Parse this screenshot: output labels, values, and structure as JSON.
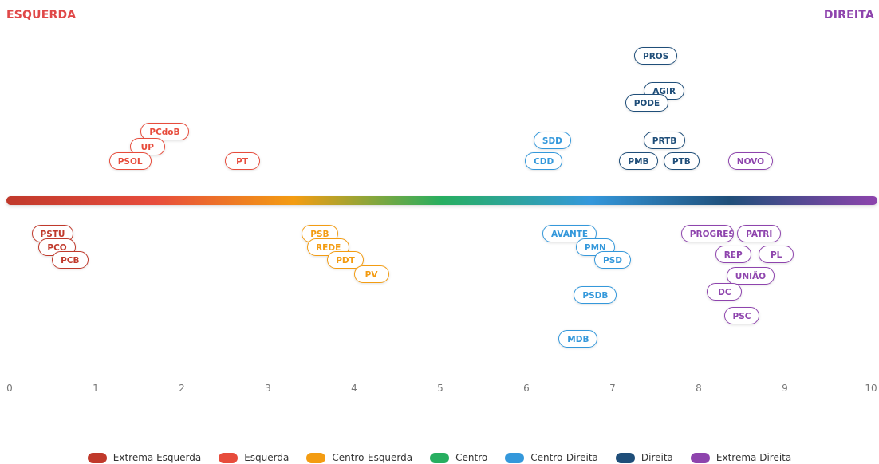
{
  "chart_data": {
    "type": "scatter",
    "left_label": "ESQUERDA",
    "right_label": "DIREITA",
    "xlim": [
      0,
      10
    ],
    "ticks": [
      "0",
      "1",
      "2",
      "3",
      "4",
      "5",
      "6",
      "7",
      "8",
      "9",
      "10"
    ],
    "categories": [
      {
        "name": "Extrema Esquerda",
        "color": "#c0392b"
      },
      {
        "name": "Esquerda",
        "color": "#e74c3c"
      },
      {
        "name": "Centro-Esquerda",
        "color": "#f39c12"
      },
      {
        "name": "Centro",
        "color": "#27ae60"
      },
      {
        "name": "Centro-Direita",
        "color": "#3498db"
      },
      {
        "name": "Direita",
        "color": "#1f4e79"
      },
      {
        "name": "Extrema Direita",
        "color": "#8e44ad"
      }
    ],
    "parties": [
      {
        "label": "PROS",
        "x": 7.5,
        "cat": 5,
        "side": "above",
        "level": 6
      },
      {
        "label": "AGIR",
        "x": 7.6,
        "cat": 5,
        "side": "above",
        "level": 4
      },
      {
        "label": "PODE",
        "x": 7.4,
        "cat": 5,
        "side": "above",
        "level": 3.3
      },
      {
        "label": "PRTB",
        "x": 7.6,
        "cat": 5,
        "side": "above",
        "level": 1.2
      },
      {
        "label": "PMB",
        "x": 7.3,
        "cat": 5,
        "side": "above",
        "level": 0
      },
      {
        "label": "PTB",
        "x": 7.8,
        "cat": 5,
        "side": "above",
        "level": 0
      },
      {
        "label": "PCdoB",
        "x": 1.8,
        "cat": 1,
        "side": "above",
        "level": 1.7
      },
      {
        "label": "UP",
        "x": 1.6,
        "cat": 1,
        "side": "above",
        "level": 0.8
      },
      {
        "label": "PSOL",
        "x": 1.4,
        "cat": 1,
        "side": "above",
        "level": 0
      },
      {
        "label": "PT",
        "x": 2.7,
        "cat": 1,
        "side": "above",
        "level": 0
      },
      {
        "label": "SDD",
        "x": 6.3,
        "cat": 4,
        "side": "above",
        "level": 1.2
      },
      {
        "label": "CDD",
        "x": 6.2,
        "cat": 4,
        "side": "above",
        "level": 0
      },
      {
        "label": "NOVO",
        "x": 8.6,
        "cat": 6,
        "side": "above",
        "level": 0
      },
      {
        "label": "PSTU",
        "x": 0.5,
        "cat": 0,
        "side": "below",
        "level": 0
      },
      {
        "label": "PCO",
        "x": 0.55,
        "cat": 0,
        "side": "below",
        "level": 0.75
      },
      {
        "label": "PCB",
        "x": 0.7,
        "cat": 0,
        "side": "below",
        "level": 1.5
      },
      {
        "label": "PSB",
        "x": 3.6,
        "cat": 2,
        "side": "below",
        "level": 0
      },
      {
        "label": "REDE",
        "x": 3.7,
        "cat": 2,
        "side": "below",
        "level": 0.75
      },
      {
        "label": "PDT",
        "x": 3.9,
        "cat": 2,
        "side": "below",
        "level": 1.5
      },
      {
        "label": "PV",
        "x": 4.2,
        "cat": 2,
        "side": "below",
        "level": 2.3
      },
      {
        "label": "AVANTE",
        "x": 6.5,
        "cat": 4,
        "side": "below",
        "level": 0
      },
      {
        "label": "PMN",
        "x": 6.8,
        "cat": 4,
        "side": "below",
        "level": 0.75
      },
      {
        "label": "PSD",
        "x": 7.0,
        "cat": 4,
        "side": "below",
        "level": 1.5
      },
      {
        "label": "PSDB",
        "x": 6.8,
        "cat": 4,
        "side": "below",
        "level": 3.5
      },
      {
        "label": "MDB",
        "x": 6.6,
        "cat": 4,
        "side": "below",
        "level": 6
      },
      {
        "label": "PROGRESSISTAS",
        "x": 8.1,
        "cat": 6,
        "side": "below",
        "level": 0
      },
      {
        "label": "PATRI",
        "x": 8.7,
        "cat": 6,
        "side": "below",
        "level": 0
      },
      {
        "label": "REP",
        "x": 8.4,
        "cat": 6,
        "side": "below",
        "level": 1.2
      },
      {
        "label": "PL",
        "x": 8.9,
        "cat": 6,
        "side": "below",
        "level": 1.2
      },
      {
        "label": "UNIÃO",
        "x": 8.6,
        "cat": 6,
        "side": "below",
        "level": 2.4
      },
      {
        "label": "DC",
        "x": 8.3,
        "cat": 6,
        "side": "below",
        "level": 3.3
      },
      {
        "label": "PSC",
        "x": 8.5,
        "cat": 6,
        "side": "below",
        "level": 4.7
      }
    ]
  }
}
